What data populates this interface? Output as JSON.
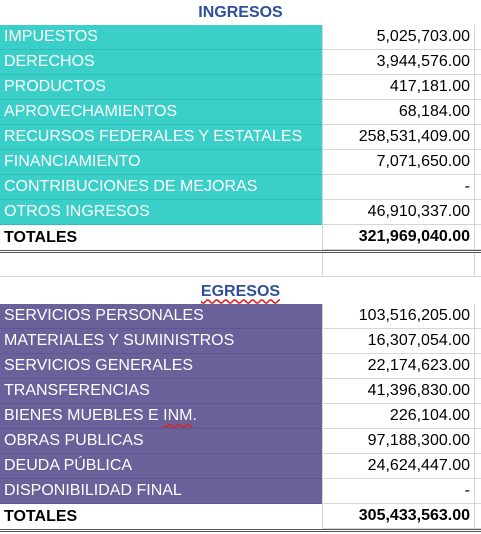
{
  "ingresos": {
    "title": "INGRESOS",
    "rows": [
      {
        "label": "IMPUESTOS",
        "value": "5,025,703.00"
      },
      {
        "label": "DERECHOS",
        "value": "3,944,576.00"
      },
      {
        "label": "PRODUCTOS",
        "value": "417,181.00"
      },
      {
        "label": "APROVECHAMIENTOS",
        "value": "68,184.00"
      },
      {
        "label": "RECURSOS FEDERALES Y ESTATALES",
        "value": "258,531,409.00"
      },
      {
        "label": "FINANCIAMIENTO",
        "value": "7,071,650.00"
      },
      {
        "label": "CONTRIBUCIONES DE MEJORAS",
        "value": "-"
      },
      {
        "label": "OTROS INGRESOS",
        "value": "46,910,337.00"
      }
    ],
    "total_label": "TOTALES",
    "total_value": "321,969,040.00",
    "color": "#3bcfc9"
  },
  "egresos": {
    "title": "EGRESOS",
    "rows": [
      {
        "label": "SERVICIOS PERSONALES",
        "value": "103,516,205.00"
      },
      {
        "label": "MATERIALES Y SUMINISTROS",
        "value": "16,307,054.00"
      },
      {
        "label": "SERVICIOS GENERALES",
        "value": "22,174,623.00"
      },
      {
        "label": "TRANSFERENCIAS",
        "value": "41,396,830.00"
      },
      {
        "label": "BIENES MUEBLES E INM.",
        "value": "226,104.00"
      },
      {
        "label": "OBRAS PUBLICAS",
        "value": "97,188,300.00"
      },
      {
        "label": "DEUDA PÚBLICA",
        "value": "24,624,447.00"
      },
      {
        "label": "DISPONIBILIDAD FINAL",
        "value": "-"
      }
    ],
    "total_label": "TOTALES",
    "total_value": "305,433,563.00",
    "color": "#6a609a"
  }
}
